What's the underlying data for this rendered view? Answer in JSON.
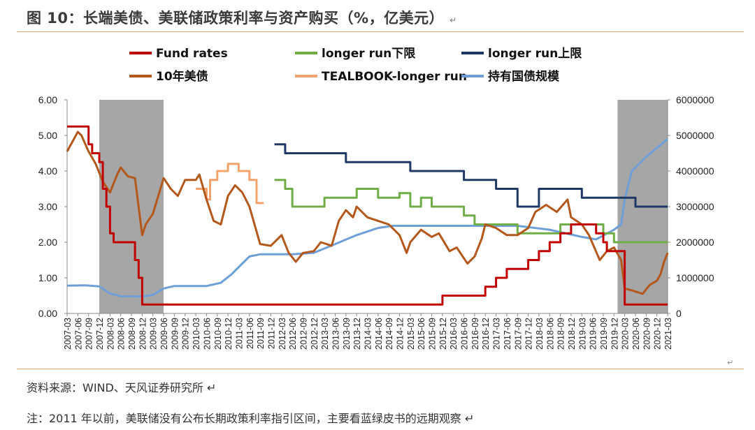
{
  "title": "图 10：长端美债、美联储政策利率与资产购买（%，亿美元）",
  "para_mark": "↵",
  "source": "资料来源：WIND、天风证券研究所 ↵",
  "footnote": "注：2011 年以前，美联储没有公布长期政策利率指引区间，主要看蓝绿皮书的远期观察 ↵",
  "end_mark": "↵",
  "colors": {
    "fund_rates": "#c00000",
    "longer_run_low": "#70ad47",
    "longer_run_high": "#1f3864",
    "ust10": "#b4571b",
    "tealbook": "#f4a46a",
    "holdings": "#6f9fd8",
    "recession": "#a6a6a6",
    "rule": "#e3a06a"
  },
  "chart_data": {
    "type": "line",
    "title": "",
    "xlabel": "",
    "ylabel": "",
    "y2label": "",
    "ylim": [
      0,
      6
    ],
    "y2lim": [
      0,
      6000000
    ],
    "yticks": [
      "0.00",
      "1.00",
      "2.00",
      "3.00",
      "4.00",
      "5.00",
      "6.00"
    ],
    "y2ticks": [
      "0",
      "1000000",
      "2000000",
      "3000000",
      "4000000",
      "5000000",
      "6000000"
    ],
    "x_start": "2007-03",
    "x_end": "2021-03",
    "x_ticks": [
      "2007-03",
      "2007-06",
      "2007-09",
      "2007-12",
      "2008-03",
      "2008-06",
      "2008-09",
      "2008-12",
      "2009-03",
      "2009-06",
      "2009-09",
      "2009-12",
      "2010-03",
      "2010-06",
      "2010-09",
      "2010-12",
      "2011-03",
      "2011-06",
      "2011-09",
      "2011-12",
      "2012-03",
      "2012-06",
      "2012-09",
      "2012-12",
      "2013-03",
      "2013-06",
      "2013-09",
      "2013-12",
      "2014-03",
      "2014-06",
      "2014-09",
      "2014-12",
      "2015-03",
      "2015-06",
      "2015-09",
      "2015-12",
      "2016-03",
      "2016-06",
      "2016-09",
      "2016-12",
      "2017-03",
      "2017-06",
      "2017-09",
      "2017-12",
      "2018-03",
      "2018-06",
      "2018-09",
      "2018-12",
      "2019-03",
      "2019-06",
      "2019-09",
      "2019-12",
      "2020-03",
      "2020-06",
      "2020-09",
      "2020-12",
      "2021-03"
    ],
    "legend_position": "top",
    "legend": [
      {
        "key": "fund_rates",
        "name": "Fund rates",
        "color": "#c00000"
      },
      {
        "key": "longer_run_low",
        "name": "longer run下限",
        "color": "#70ad47"
      },
      {
        "key": "longer_run_high",
        "name": "longer run上限",
        "color": "#1f3864"
      },
      {
        "key": "ust10",
        "name": "10年美债",
        "color": "#b4571b"
      },
      {
        "key": "tealbook",
        "name": "TEALBOOK-longer run",
        "color": "#f4a46a"
      },
      {
        "key": "holdings",
        "name": "持有国债规模",
        "color": "#6f9fd8"
      }
    ],
    "shaded_periods": [
      {
        "start": "2007-12",
        "end": "2009-06"
      },
      {
        "start": "2020-01",
        "end": "2021-03"
      }
    ],
    "series": [
      {
        "key": "fund_rates",
        "name": "Fund rates",
        "axis": "left",
        "step": true,
        "points": [
          [
            "2007-03",
            5.25
          ],
          [
            "2007-09",
            4.75
          ],
          [
            "2007-10",
            4.5
          ],
          [
            "2007-12",
            4.25
          ],
          [
            "2008-01",
            3.5
          ],
          [
            "2008-02",
            3.0
          ],
          [
            "2008-03",
            2.25
          ],
          [
            "2008-04",
            2.0
          ],
          [
            "2008-10",
            1.5
          ],
          [
            "2008-11",
            1.0
          ],
          [
            "2008-12",
            0.25
          ],
          [
            "2015-12",
            0.5
          ],
          [
            "2016-12",
            0.75
          ],
          [
            "2017-03",
            1.0
          ],
          [
            "2017-06",
            1.25
          ],
          [
            "2017-12",
            1.5
          ],
          [
            "2018-03",
            1.75
          ],
          [
            "2018-06",
            2.0
          ],
          [
            "2018-09",
            2.25
          ],
          [
            "2018-12",
            2.5
          ],
          [
            "2019-07",
            2.25
          ],
          [
            "2019-09",
            2.0
          ],
          [
            "2019-10",
            1.75
          ],
          [
            "2020-03",
            0.25
          ],
          [
            "2021-03",
            0.25
          ]
        ]
      },
      {
        "key": "longer_run_low",
        "name": "longer run下限",
        "axis": "left",
        "step": true,
        "points": [
          [
            "2012-01",
            3.75
          ],
          [
            "2012-04",
            3.5
          ],
          [
            "2012-06",
            3.0
          ],
          [
            "2013-03",
            3.25
          ],
          [
            "2013-12",
            3.5
          ],
          [
            "2014-06",
            3.25
          ],
          [
            "2014-12",
            3.38
          ],
          [
            "2015-03",
            3.0
          ],
          [
            "2015-06",
            3.25
          ],
          [
            "2015-09",
            3.0
          ],
          [
            "2016-06",
            2.75
          ],
          [
            "2016-09",
            2.5
          ],
          [
            "2017-09",
            2.25
          ],
          [
            "2018-09",
            2.5
          ],
          [
            "2019-09",
            2.25
          ],
          [
            "2019-12",
            2.0
          ],
          [
            "2021-03",
            2.0
          ]
        ]
      },
      {
        "key": "longer_run_high",
        "name": "longer run上限",
        "axis": "left",
        "step": true,
        "points": [
          [
            "2012-01",
            4.75
          ],
          [
            "2012-04",
            4.5
          ],
          [
            "2013-09",
            4.25
          ],
          [
            "2015-03",
            4.0
          ],
          [
            "2016-06",
            3.75
          ],
          [
            "2017-03",
            3.5
          ],
          [
            "2017-09",
            3.0
          ],
          [
            "2018-03",
            3.5
          ],
          [
            "2019-03",
            3.25
          ],
          [
            "2020-06",
            3.0
          ],
          [
            "2021-03",
            3.0
          ]
        ]
      },
      {
        "key": "ust10",
        "name": "10年美债",
        "axis": "left",
        "step": false,
        "points": [
          [
            "2007-03",
            4.55
          ],
          [
            "2007-06",
            5.1
          ],
          [
            "2007-07",
            5.0
          ],
          [
            "2007-09",
            4.55
          ],
          [
            "2007-11",
            4.2
          ],
          [
            "2008-01",
            3.7
          ],
          [
            "2008-03",
            3.4
          ],
          [
            "2008-05",
            3.9
          ],
          [
            "2008-06",
            4.1
          ],
          [
            "2008-08",
            3.85
          ],
          [
            "2008-10",
            3.8
          ],
          [
            "2008-12",
            2.2
          ],
          [
            "2009-01",
            2.5
          ],
          [
            "2009-03",
            2.8
          ],
          [
            "2009-06",
            3.8
          ],
          [
            "2009-08",
            3.5
          ],
          [
            "2009-10",
            3.3
          ],
          [
            "2009-12",
            3.75
          ],
          [
            "2010-03",
            3.75
          ],
          [
            "2010-04",
            3.9
          ],
          [
            "2010-06",
            3.2
          ],
          [
            "2010-08",
            2.6
          ],
          [
            "2010-10",
            2.5
          ],
          [
            "2010-12",
            3.3
          ],
          [
            "2011-02",
            3.6
          ],
          [
            "2011-04",
            3.4
          ],
          [
            "2011-06",
            3.0
          ],
          [
            "2011-08",
            2.3
          ],
          [
            "2011-09",
            1.95
          ],
          [
            "2011-12",
            1.9
          ],
          [
            "2012-03",
            2.2
          ],
          [
            "2012-05",
            1.7
          ],
          [
            "2012-07",
            1.45
          ],
          [
            "2012-09",
            1.7
          ],
          [
            "2012-12",
            1.75
          ],
          [
            "2013-02",
            2.0
          ],
          [
            "2013-05",
            1.9
          ],
          [
            "2013-07",
            2.6
          ],
          [
            "2013-09",
            2.9
          ],
          [
            "2013-11",
            2.7
          ],
          [
            "2013-12",
            3.0
          ],
          [
            "2014-03",
            2.7
          ],
          [
            "2014-06",
            2.6
          ],
          [
            "2014-09",
            2.5
          ],
          [
            "2014-12",
            2.2
          ],
          [
            "2015-02",
            1.7
          ],
          [
            "2015-03",
            2.0
          ],
          [
            "2015-06",
            2.35
          ],
          [
            "2015-09",
            2.15
          ],
          [
            "2015-11",
            2.25
          ],
          [
            "2016-02",
            1.75
          ],
          [
            "2016-04",
            1.85
          ],
          [
            "2016-07",
            1.4
          ],
          [
            "2016-09",
            1.6
          ],
          [
            "2016-11",
            2.1
          ],
          [
            "2016-12",
            2.5
          ],
          [
            "2017-03",
            2.4
          ],
          [
            "2017-06",
            2.2
          ],
          [
            "2017-09",
            2.2
          ],
          [
            "2017-12",
            2.4
          ],
          [
            "2018-02",
            2.85
          ],
          [
            "2018-05",
            3.05
          ],
          [
            "2018-08",
            2.85
          ],
          [
            "2018-11",
            3.2
          ],
          [
            "2018-12",
            2.7
          ],
          [
            "2019-03",
            2.5
          ],
          [
            "2019-05",
            2.2
          ],
          [
            "2019-08",
            1.5
          ],
          [
            "2019-10",
            1.75
          ],
          [
            "2019-12",
            1.85
          ],
          [
            "2020-02",
            1.5
          ],
          [
            "2020-03",
            0.7
          ],
          [
            "2020-05",
            0.65
          ],
          [
            "2020-08",
            0.55
          ],
          [
            "2020-10",
            0.8
          ],
          [
            "2020-12",
            0.92
          ],
          [
            "2021-01",
            1.1
          ],
          [
            "2021-02",
            1.45
          ],
          [
            "2021-03",
            1.7
          ]
        ]
      },
      {
        "key": "tealbook",
        "name": "TEALBOOK-longer run",
        "axis": "left",
        "step": true,
        "points": [
          [
            "2010-03",
            3.5
          ],
          [
            "2010-06",
            3.2
          ],
          [
            "2010-07",
            3.75
          ],
          [
            "2010-09",
            4.0
          ],
          [
            "2010-12",
            4.2
          ],
          [
            "2011-03",
            4.0
          ],
          [
            "2011-06",
            3.75
          ],
          [
            "2011-08",
            3.1
          ],
          [
            "2011-10",
            3.1
          ]
        ]
      },
      {
        "key": "holdings",
        "name": "持有国债规模",
        "axis": "right",
        "step": false,
        "points": [
          [
            "2007-03",
            780000
          ],
          [
            "2007-08",
            790000
          ],
          [
            "2007-12",
            760000
          ],
          [
            "2008-03",
            560000
          ],
          [
            "2008-06",
            480000
          ],
          [
            "2008-12",
            475000
          ],
          [
            "2009-03",
            520000
          ],
          [
            "2009-06",
            700000
          ],
          [
            "2009-09",
            770000
          ],
          [
            "2010-06",
            770000
          ],
          [
            "2010-10",
            860000
          ],
          [
            "2011-01",
            1100000
          ],
          [
            "2011-03",
            1300000
          ],
          [
            "2011-06",
            1600000
          ],
          [
            "2011-09",
            1660000
          ],
          [
            "2012-06",
            1660000
          ],
          [
            "2012-12",
            1700000
          ],
          [
            "2013-06",
            1950000
          ],
          [
            "2013-12",
            2200000
          ],
          [
            "2014-06",
            2400000
          ],
          [
            "2014-10",
            2460000
          ],
          [
            "2017-09",
            2460000
          ],
          [
            "2018-06",
            2350000
          ],
          [
            "2019-03",
            2150000
          ],
          [
            "2019-07",
            2080000
          ],
          [
            "2019-12",
            2350000
          ],
          [
            "2020-02",
            2500000
          ],
          [
            "2020-03",
            3200000
          ],
          [
            "2020-05",
            4000000
          ],
          [
            "2020-09",
            4400000
          ],
          [
            "2020-12",
            4650000
          ],
          [
            "2021-03",
            4900000
          ]
        ]
      }
    ]
  }
}
